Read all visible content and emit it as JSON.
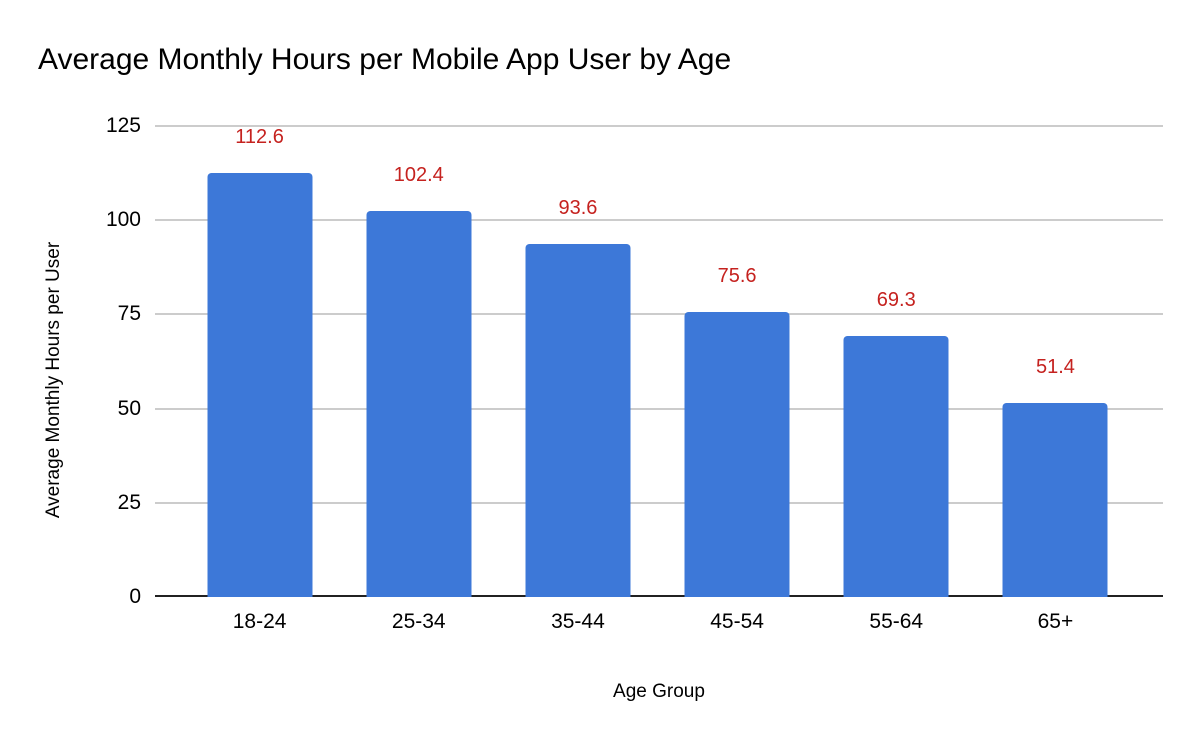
{
  "page": {
    "background": "#ffffff"
  },
  "chart_data": {
    "type": "bar",
    "title": "Average Monthly Hours per Mobile App User by Age",
    "xlabel": "Age Group",
    "ylabel": "Average Monthly Hours per User",
    "categories": [
      "18-24",
      "25-34",
      "35-44",
      "45-54",
      "55-64",
      "65+"
    ],
    "values": [
      112.6,
      102.4,
      93.6,
      75.6,
      69.3,
      51.4
    ],
    "data_labels": [
      "112.6",
      "102.4",
      "93.6",
      "75.6",
      "69.3",
      "51.4"
    ],
    "ylim": [
      0,
      125
    ],
    "yticks": [
      0,
      25,
      50,
      75,
      100,
      125
    ],
    "grid": true,
    "legend": "none",
    "colors": {
      "bar": "#3d78d8",
      "data_label": "#c5221f",
      "gridline": "#cccccc",
      "axis_line": "#212121",
      "tick_text": "#000000",
      "title_text": "#000000"
    }
  }
}
